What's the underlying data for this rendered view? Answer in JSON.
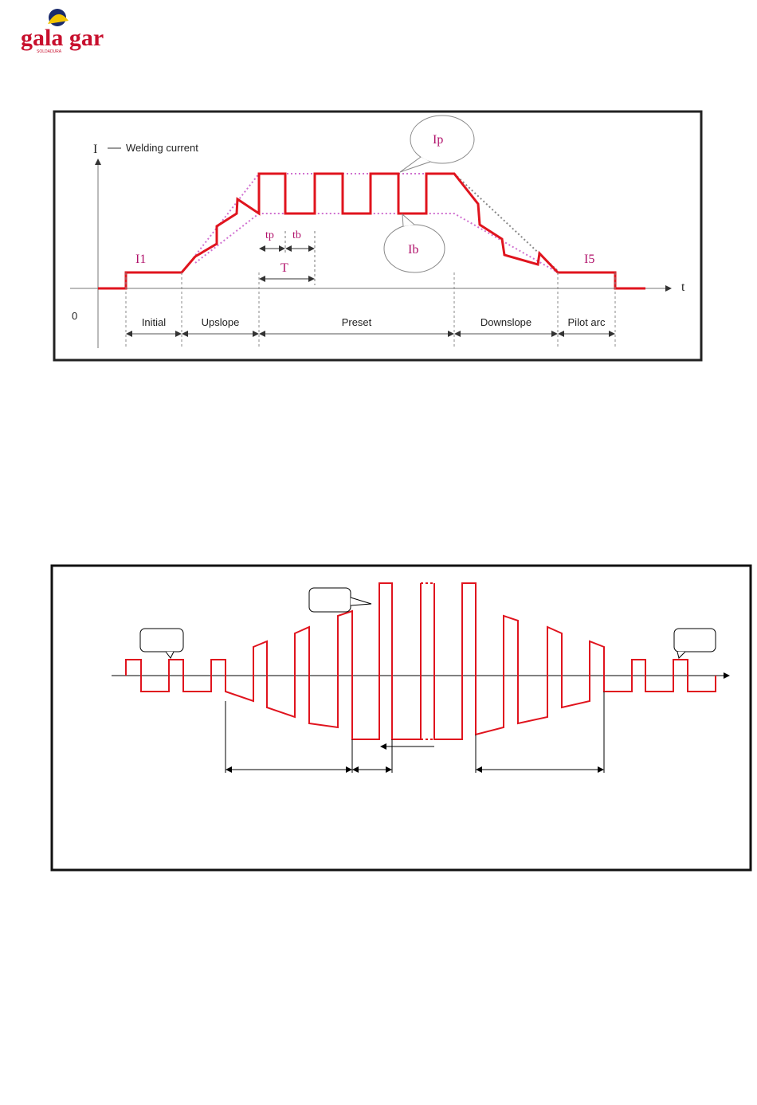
{
  "logo": {
    "name": "gala gar",
    "tagline": "SOLDADURA"
  },
  "figure1": {
    "axis_label": "I",
    "legend": "Welding current",
    "time_label": "t",
    "origin_label": "0",
    "levels": {
      "initial": "I1",
      "peak": "Ip",
      "base": "Ib",
      "final": "I5"
    },
    "pulse": {
      "peak_time": "tp",
      "base_time": "tb",
      "period": "T"
    },
    "phases": [
      "Initial",
      "Upslope",
      "Preset",
      "Downslope",
      "Pilot arc"
    ]
  }
}
